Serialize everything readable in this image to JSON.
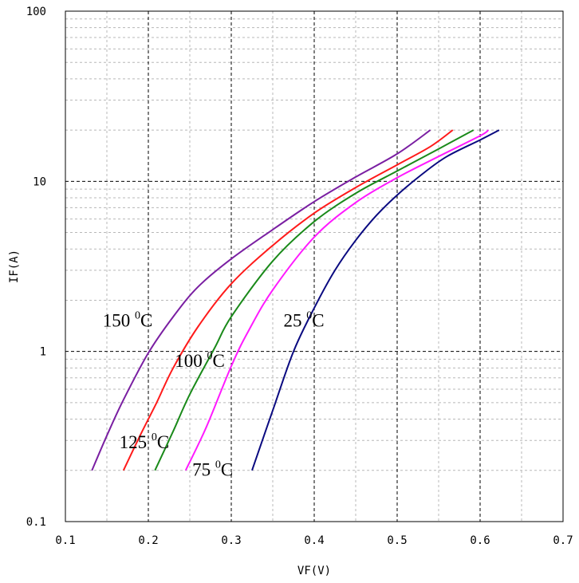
{
  "chart_data": {
    "type": "line",
    "title": "",
    "xlabel": "VF(V)",
    "ylabel": "IF(A)",
    "xlim": [
      0.1,
      0.7
    ],
    "ylim": [
      0.1,
      100
    ],
    "y_scale": "log",
    "grid": true,
    "x_ticks": [
      "0.1",
      "0.2",
      "0.3",
      "0.4",
      "0.5",
      "0.6",
      "0.7"
    ],
    "y_ticks": [
      "0.1",
      "1",
      "10",
      "100"
    ],
    "series": [
      {
        "name": "150 °C",
        "label_text": "150",
        "label_sup": "0",
        "label_unit": "C",
        "color": "#7a1fa2",
        "points": [
          [
            0.132,
            0.2
          ],
          [
            0.15,
            0.32
          ],
          [
            0.17,
            0.52
          ],
          [
            0.2,
            0.98
          ],
          [
            0.23,
            1.6
          ],
          [
            0.26,
            2.4
          ],
          [
            0.3,
            3.5
          ],
          [
            0.35,
            5.2
          ],
          [
            0.4,
            7.6
          ],
          [
            0.45,
            10.6
          ],
          [
            0.5,
            14.5
          ],
          [
            0.54,
            20
          ]
        ]
      },
      {
        "name": "125 °C",
        "label_text": "125",
        "label_sup": "0",
        "label_unit": "C",
        "color": "#ff1a1a",
        "points": [
          [
            0.17,
            0.2
          ],
          [
            0.19,
            0.32
          ],
          [
            0.21,
            0.5
          ],
          [
            0.23,
            0.8
          ],
          [
            0.26,
            1.4
          ],
          [
            0.3,
            2.5
          ],
          [
            0.35,
            4.2
          ],
          [
            0.4,
            6.5
          ],
          [
            0.45,
            9.2
          ],
          [
            0.5,
            12.5
          ],
          [
            0.54,
            16.0
          ],
          [
            0.567,
            20
          ]
        ]
      },
      {
        "name": "100 °C",
        "label_text": "100",
        "label_sup": "0",
        "label_unit": "C",
        "color": "#1a8a1a",
        "points": [
          [
            0.208,
            0.2
          ],
          [
            0.23,
            0.34
          ],
          [
            0.25,
            0.56
          ],
          [
            0.28,
            1.05
          ],
          [
            0.3,
            1.6
          ],
          [
            0.35,
            3.4
          ],
          [
            0.4,
            5.8
          ],
          [
            0.45,
            8.5
          ],
          [
            0.5,
            11.5
          ],
          [
            0.55,
            15.5
          ],
          [
            0.592,
            20
          ]
        ]
      },
      {
        "name": "75 °C",
        "label_text": "75",
        "label_sup": "0",
        "label_unit": "C",
        "color": "#ff1aff",
        "points": [
          [
            0.245,
            0.2
          ],
          [
            0.27,
            0.36
          ],
          [
            0.3,
            0.82
          ],
          [
            0.32,
            1.3
          ],
          [
            0.35,
            2.3
          ],
          [
            0.4,
            4.7
          ],
          [
            0.45,
            7.5
          ],
          [
            0.5,
            10.5
          ],
          [
            0.55,
            14.0
          ],
          [
            0.6,
            18.5
          ],
          [
            0.61,
            20
          ]
        ]
      },
      {
        "name": "25 °C",
        "label_text": "25",
        "label_sup": "0",
        "label_unit": "C",
        "color": "#0a0a80",
        "points": [
          [
            0.325,
            0.2
          ],
          [
            0.35,
            0.45
          ],
          [
            0.375,
            1.0
          ],
          [
            0.4,
            1.8
          ],
          [
            0.425,
            3.0
          ],
          [
            0.45,
            4.5
          ],
          [
            0.475,
            6.3
          ],
          [
            0.5,
            8.3
          ],
          [
            0.53,
            11.0
          ],
          [
            0.56,
            14.0
          ],
          [
            0.6,
            17.5
          ],
          [
            0.623,
            20
          ]
        ]
      }
    ]
  }
}
